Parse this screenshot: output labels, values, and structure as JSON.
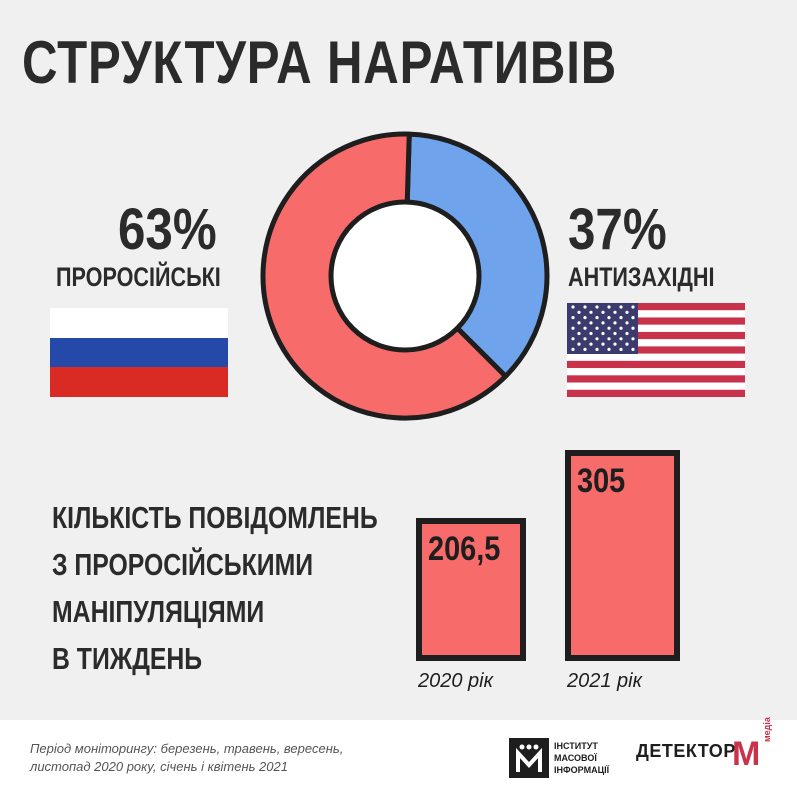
{
  "title": "СТРУКТУРА НАРАТИВІВ",
  "chart_data": [
    {
      "type": "pie",
      "categories": [
        "ПРОРОСІЙСЬКІ",
        "АНТИЗАХІДНІ"
      ],
      "values": [
        63,
        37
      ],
      "labels": [
        "63%",
        "37%"
      ],
      "colors": [
        "#f76b6b",
        "#6fa4ec"
      ]
    },
    {
      "type": "bar",
      "title": "КІЛЬКІСТЬ ПОВІДОМЛЕНЬ З ПРОРОСІЙСЬКИМИ МАНІПУЛЯЦІЯМИ В ТИЖДЕНЬ",
      "categories": [
        "2020 рік",
        "2021 рік"
      ],
      "values": [
        206.5,
        305
      ],
      "labels": [
        "206,5",
        "305"
      ],
      "color": "#f76b6b"
    }
  ],
  "bars_label_lines": [
    "КІЛЬКІСТЬ ПОВІДОМЛЕНЬ",
    "З ПРОРОСІЙСЬКИМИ",
    "МАНІПУЛЯЦІЯМИ",
    "В ТИЖДЕНЬ"
  ],
  "footnote_lines": [
    "Період моніторингу: березень, травень, вересень,",
    "листопад 2020 року, січень і квітень 2021"
  ],
  "imi_lines": [
    "ІНСТИТУТ",
    "МАСОВОЇ",
    "ІНФОРМАЦІЇ"
  ],
  "detector_logo": "ДЕТЕКТОР",
  "detector_m": "M",
  "detector_media": "медіа",
  "icons": {
    "flag_left": "russia-flag-icon",
    "flag_right": "usa-flag-icon"
  }
}
